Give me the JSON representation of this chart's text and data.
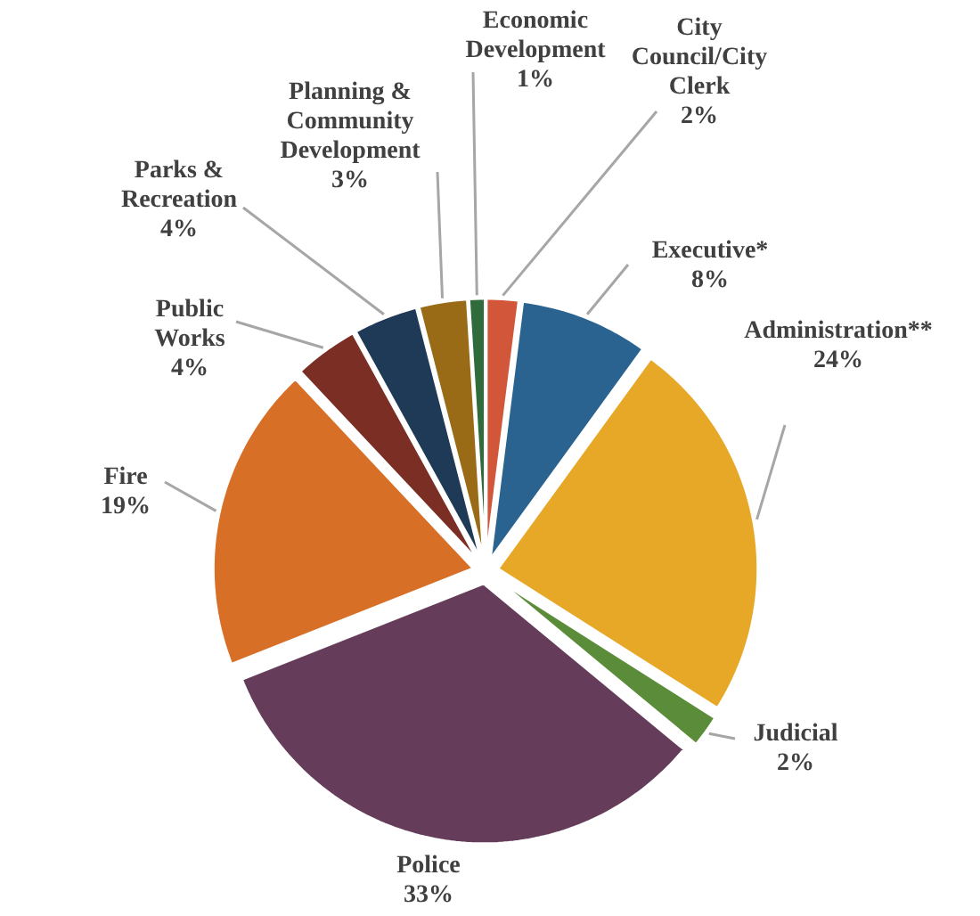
{
  "chart_data": {
    "type": "pie",
    "categories": [
      "City Council/City Clerk",
      "Executive*",
      "Administration**",
      "Judicial",
      "Police",
      "Fire",
      "Public Works",
      "Parks & Recreation",
      "Planning & Community Development",
      "Economic Development"
    ],
    "values": [
      2,
      8,
      24,
      2,
      33,
      19,
      4,
      4,
      3,
      1
    ],
    "value_labels": [
      "2%",
      "8%",
      "24%",
      "2%",
      "33%",
      "19%",
      "4%",
      "4%",
      "3%",
      "1%"
    ],
    "colors": [
      "#d2573a",
      "#2a6390",
      "#e6a826",
      "#5b8c3a",
      "#653d5b",
      "#d76f27",
      "#7b2e23",
      "#1f3a56",
      "#9a6b16",
      "#2f6b3b"
    ]
  }
}
